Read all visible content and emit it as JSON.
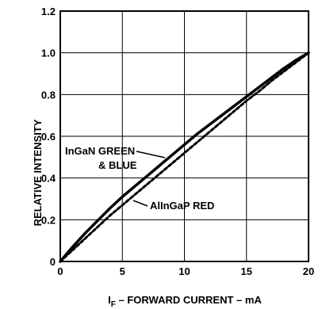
{
  "chart_data": {
    "type": "line",
    "xlabel_main": "I",
    "xlabel_sub": "F",
    "xlabel_rest": " – FORWARD CURRENT – mA",
    "ylabel": "RELATIVE INTENSITY",
    "xlim": [
      0,
      20
    ],
    "ylim": [
      0,
      1.2
    ],
    "x_ticks": [
      0,
      5,
      10,
      15,
      20
    ],
    "x_tick_labels": [
      "0",
      "5",
      "10",
      "15",
      "20"
    ],
    "y_ticks": [
      0,
      0.2,
      0.4,
      0.6,
      0.8,
      1.0,
      1.2
    ],
    "y_tick_labels": [
      "0",
      "0.2",
      "0.4",
      "0.6",
      "0.8",
      "1.0",
      "1.2"
    ],
    "grid": true,
    "series": [
      {
        "name": "InGaN GREEN & BLUE",
        "line_style": "solid",
        "x": [
          0,
          1,
          2,
          3,
          4,
          5,
          6,
          7,
          8,
          9,
          10,
          11,
          12,
          13,
          14,
          15,
          16,
          17,
          18,
          19,
          20
        ],
        "values": [
          0,
          0.07,
          0.135,
          0.195,
          0.255,
          0.31,
          0.36,
          0.41,
          0.46,
          0.51,
          0.56,
          0.61,
          0.655,
          0.7,
          0.745,
          0.79,
          0.835,
          0.88,
          0.925,
          0.965,
          1.0
        ]
      },
      {
        "name": "AlInGaP RED",
        "line_style": "dashed",
        "x": [
          0,
          1,
          2,
          3,
          4,
          5,
          6,
          7,
          8,
          9,
          10,
          11,
          12,
          13,
          14,
          15,
          16,
          17,
          18,
          19,
          20
        ],
        "values": [
          0,
          0.055,
          0.11,
          0.165,
          0.22,
          0.27,
          0.32,
          0.37,
          0.42,
          0.47,
          0.52,
          0.57,
          0.62,
          0.67,
          0.72,
          0.77,
          0.815,
          0.865,
          0.91,
          0.955,
          1.0
        ]
      }
    ],
    "annotations": {
      "ingan_line1": "InGaN GREEN",
      "ingan_line2": "& BLUE",
      "alingap": "AlInGaP RED"
    },
    "colors": {
      "line": "#000000",
      "grid": "#000000",
      "background": "#ffffff"
    }
  }
}
